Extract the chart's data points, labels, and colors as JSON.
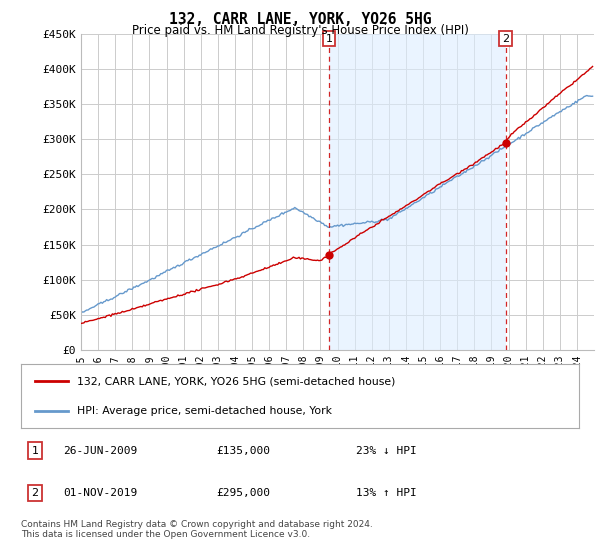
{
  "title": "132, CARR LANE, YORK, YO26 5HG",
  "subtitle": "Price paid vs. HM Land Registry's House Price Index (HPI)",
  "red_line_label": "132, CARR LANE, YORK, YO26 5HG (semi-detached house)",
  "blue_line_label": "HPI: Average price, semi-detached house, York",
  "annotation1_date": "26-JUN-2009",
  "annotation1_price": "£135,000",
  "annotation1_pct": "23% ↓ HPI",
  "annotation2_date": "01-NOV-2019",
  "annotation2_price": "£295,000",
  "annotation2_pct": "13% ↑ HPI",
  "footer": "Contains HM Land Registry data © Crown copyright and database right 2024.\nThis data is licensed under the Open Government Licence v3.0.",
  "xmin": 1995.0,
  "xmax": 2025.0,
  "ymin": 0,
  "ymax": 450000,
  "yticks": [
    0,
    50000,
    100000,
    150000,
    200000,
    250000,
    300000,
    350000,
    400000,
    450000
  ],
  "ytick_labels": [
    "£0",
    "£50K",
    "£100K",
    "£150K",
    "£200K",
    "£250K",
    "£300K",
    "£350K",
    "£400K",
    "£450K"
  ],
  "red_color": "#cc0000",
  "blue_color": "#6699cc",
  "shade_color": "#ddeeff",
  "vline1_x": 2009.5,
  "vline2_x": 2019.83,
  "marker1_x": 2009.5,
  "marker1_y": 135000,
  "marker2_x": 2019.83,
  "marker2_y": 295000,
  "bg_color": "#ffffff",
  "plot_bg": "#ffffff",
  "grid_color": "#cccccc"
}
